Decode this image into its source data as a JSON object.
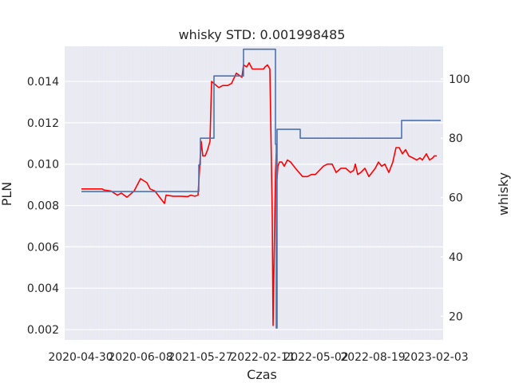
{
  "chart_data": {
    "type": "line",
    "title": "whisky STD: 0.001998485",
    "xlabel": "Czas",
    "ylabel_left": "PLN",
    "ylabel_right": "whisky",
    "x_tick_labels": [
      "2020-04-30",
      "2020-06-08",
      "2021-05-27",
      "2022-02-11",
      "2022-05-02",
      "2022-08-19",
      "2023-02-03"
    ],
    "ylim_left": [
      0.0015,
      0.0157
    ],
    "y_ticks_left": [
      "0.002",
      "0.004",
      "0.006",
      "0.008",
      "0.010",
      "0.012",
      "0.014"
    ],
    "ylim_right": [
      12,
      111
    ],
    "y_ticks_right": [
      "20",
      "40",
      "60",
      "80",
      "100"
    ],
    "grid": true,
    "colors": {
      "pln_series": "#ff0000",
      "whisky_series": "#4c72b0",
      "grid_vertical": "#e6e8f2",
      "axes_bg": "#eaeaf2"
    },
    "series": [
      {
        "axis": "left",
        "x": [
          0,
          9,
          17,
          26,
          28,
          37,
          45,
          50,
          57,
          66,
          70,
          74,
          78,
          82,
          86,
          92,
          98,
          104,
          106,
          115,
          124,
          133,
          137,
          142,
          146,
          148,
          150,
          152,
          155,
          158,
          161,
          163,
          166,
          172,
          177,
          183,
          188,
          194,
          201,
          203,
          207,
          210,
          214,
          218,
          223,
          228,
          230,
          233,
          236,
          239,
          240,
          242,
          243,
          244,
          245,
          246,
          248,
          251,
          254,
          258,
          262,
          268,
          277,
          283,
          288,
          293,
          298,
          303,
          308,
          314,
          319,
          325,
          331,
          337,
          341,
          343,
          346,
          350,
          355,
          360,
          364,
          368,
          372,
          376,
          380,
          385,
          390,
          394,
          398,
          402,
          406,
          410,
          415,
          420,
          424,
          427,
          432,
          436,
          440,
          442,
          445
        ],
        "y": [
          0.0088,
          0.0088,
          0.0088,
          0.0088,
          0.00875,
          0.0087,
          0.0085,
          0.0086,
          0.0084,
          0.0087,
          0.009,
          0.0093,
          0.0092,
          0.0091,
          0.0088,
          0.0087,
          0.0084,
          0.0081,
          0.0085,
          0.00845,
          0.00845,
          0.00843,
          0.0085,
          0.00845,
          0.0085,
          0.0098,
          0.0111,
          0.0104,
          0.0104,
          0.0107,
          0.0111,
          0.014,
          0.0139,
          0.0137,
          0.0138,
          0.0138,
          0.0139,
          0.0144,
          0.0142,
          0.0148,
          0.0147,
          0.0149,
          0.0146,
          0.0146,
          0.0146,
          0.0146,
          0.0147,
          0.0148,
          0.0146,
          0.0075,
          0.0022,
          0.007,
          0.0096,
          0.0105,
          0.0093,
          0.0099,
          0.0101,
          0.0101,
          0.0099,
          0.0102,
          0.0101,
          0.0098,
          0.0094,
          0.0094,
          0.0095,
          0.0095,
          0.0097,
          0.0099,
          0.01,
          0.01,
          0.0096,
          0.0098,
          0.0098,
          0.0096,
          0.0097,
          0.01,
          0.0095,
          0.0096,
          0.0098,
          0.0094,
          0.0096,
          0.0098,
          0.0101,
          0.0099,
          0.01,
          0.0096,
          0.0101,
          0.0108,
          0.0108,
          0.0105,
          0.0107,
          0.0104,
          0.0103,
          0.0102,
          0.0103,
          0.0102,
          0.0105,
          0.0102,
          0.0103,
          0.0104,
          0.0104
        ]
      },
      {
        "axis": "right",
        "x": [
          0,
          147,
          147,
          149,
          149,
          166,
          166,
          203,
          203,
          243,
          243,
          244,
          244,
          245,
          245,
          274,
          274,
          401,
          401,
          450
        ],
        "y": [
          62,
          62,
          71,
          71,
          80,
          80,
          101,
          101,
          110,
          110,
          78,
          78,
          16,
          16,
          83,
          83,
          80,
          80,
          86,
          86
        ]
      }
    ]
  }
}
